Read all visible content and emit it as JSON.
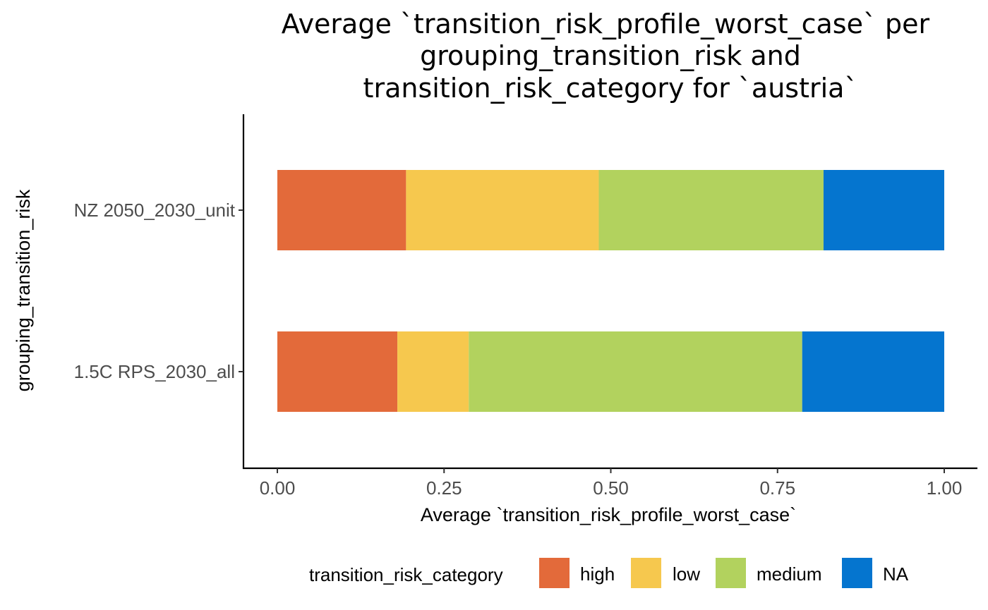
{
  "chart_data": {
    "type": "bar",
    "orientation": "horizontal",
    "stacked": true,
    "title": [
      "Average `transition_risk_profile_worst_case` per",
      "grouping_transition_risk and",
      "transition_risk_category for `austria`"
    ],
    "xlabel": "Average `transition_risk_profile_worst_case`",
    "ylabel": "grouping_transition_risk",
    "xlim": [
      0,
      1
    ],
    "xticks": [
      "0.00",
      "0.25",
      "0.50",
      "0.75",
      "1.00"
    ],
    "xtick_values": [
      0,
      0.25,
      0.5,
      0.75,
      1
    ],
    "categories": [
      "1.5C RPS_2030_all",
      "NZ 2050_2030_unit"
    ],
    "series": [
      {
        "name": "high",
        "color": "#E36A3A",
        "values": [
          0.18,
          0.193
        ]
      },
      {
        "name": "low",
        "color": "#F6C84E",
        "values": [
          0.107,
          0.289
        ]
      },
      {
        "name": "medium",
        "color": "#B2D25E",
        "values": [
          0.5,
          0.337
        ]
      },
      {
        "name": "NA",
        "color": "#0575CF",
        "values": [
          0.213,
          0.181
        ]
      }
    ],
    "legend": {
      "title": "transition_risk_category",
      "position": "bottom"
    },
    "grid": false
  }
}
